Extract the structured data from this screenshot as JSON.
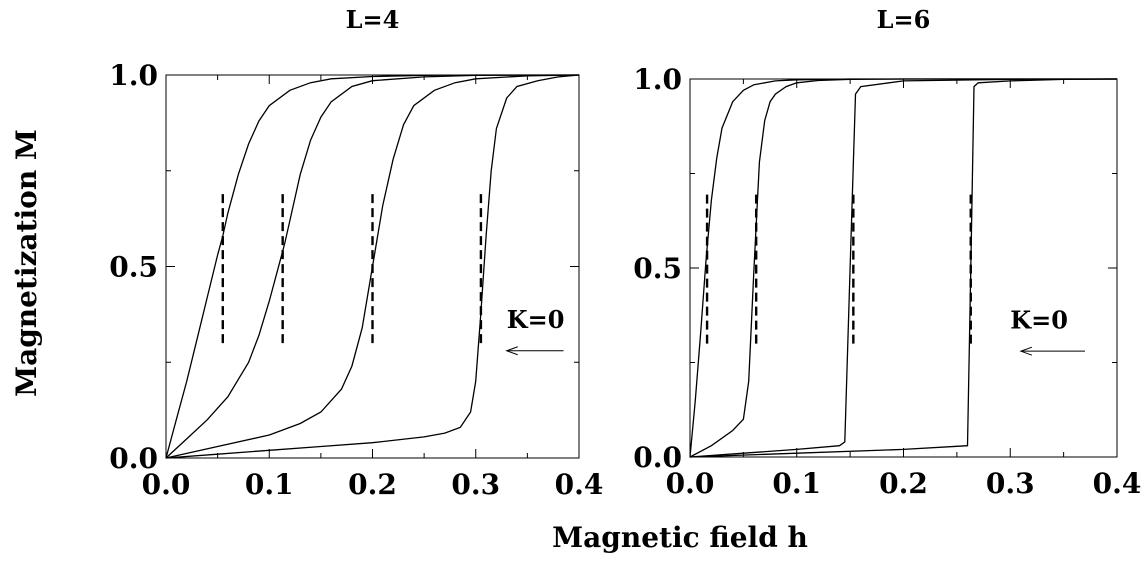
{
  "chart_data": [
    {
      "type": "line",
      "title": "L=4",
      "xlim": [
        0,
        0.4
      ],
      "ylim": [
        0,
        1
      ],
      "xticks": [
        "0.0",
        "0.1",
        "0.2",
        "0.3",
        "0.4"
      ],
      "yticks": [
        "0.0",
        "0.5",
        "1.0"
      ],
      "xlabel": "Magnetic field h",
      "ylabel": "Magnetization M",
      "grid": false,
      "series": [
        {
          "x": [
            0,
            0.01,
            0.02,
            0.03,
            0.04,
            0.05,
            0.055,
            0.06,
            0.07,
            0.08,
            0.09,
            0.1,
            0.12,
            0.14,
            0.16,
            0.2,
            0.25,
            0.3,
            0.4
          ],
          "y": [
            0,
            0.1,
            0.2,
            0.31,
            0.42,
            0.53,
            0.58,
            0.64,
            0.74,
            0.82,
            0.88,
            0.92,
            0.96,
            0.98,
            0.99,
            0.996,
            0.999,
            1.0,
            1.0
          ]
        },
        {
          "x": [
            0,
            0.02,
            0.04,
            0.06,
            0.08,
            0.09,
            0.1,
            0.11,
            0.115,
            0.12,
            0.13,
            0.14,
            0.15,
            0.16,
            0.18,
            0.2,
            0.25,
            0.3,
            0.4
          ],
          "y": [
            0,
            0.05,
            0.1,
            0.16,
            0.25,
            0.32,
            0.41,
            0.51,
            0.56,
            0.62,
            0.74,
            0.83,
            0.89,
            0.93,
            0.97,
            0.985,
            0.995,
            0.999,
            1.0
          ]
        },
        {
          "x": [
            0,
            0.05,
            0.1,
            0.13,
            0.15,
            0.17,
            0.18,
            0.19,
            0.2,
            0.21,
            0.22,
            0.23,
            0.24,
            0.26,
            0.28,
            0.3,
            0.35,
            0.4
          ],
          "y": [
            0,
            0.03,
            0.06,
            0.09,
            0.12,
            0.18,
            0.24,
            0.34,
            0.5,
            0.66,
            0.78,
            0.87,
            0.92,
            0.96,
            0.98,
            0.99,
            0.998,
            1.0
          ]
        },
        {
          "x": [
            0,
            0.05,
            0.1,
            0.15,
            0.2,
            0.25,
            0.27,
            0.285,
            0.295,
            0.3,
            0.305,
            0.31,
            0.315,
            0.32,
            0.33,
            0.34,
            0.36,
            0.38,
            0.4
          ],
          "y": [
            0,
            0.01,
            0.02,
            0.03,
            0.04,
            0.055,
            0.065,
            0.08,
            0.12,
            0.2,
            0.38,
            0.58,
            0.75,
            0.86,
            0.94,
            0.97,
            0.985,
            0.995,
            1.0
          ]
        }
      ],
      "critical_fields": [
        0.055,
        0.113,
        0.2,
        0.305
      ],
      "critical_line_yrange": [
        0.3,
        0.7
      ],
      "annotation": {
        "text": "K=0",
        "arrow_from": [
          0.385,
          0.28
        ],
        "arrow_to": [
          0.33,
          0.28
        ],
        "text_at": [
          0.33,
          0.34
        ]
      }
    },
    {
      "type": "line",
      "title": "L=6",
      "xlim": [
        0,
        0.4
      ],
      "ylim": [
        0,
        1
      ],
      "xticks": [
        "0.0",
        "0.1",
        "0.2",
        "0.3",
        "0.4"
      ],
      "yticks": [
        "0.0",
        "0.5",
        "1.0"
      ],
      "grid": false,
      "series": [
        {
          "x": [
            0,
            0.005,
            0.01,
            0.015,
            0.02,
            0.025,
            0.03,
            0.04,
            0.05,
            0.06,
            0.08,
            0.1,
            0.15,
            0.2,
            0.4
          ],
          "y": [
            0,
            0.15,
            0.33,
            0.52,
            0.68,
            0.79,
            0.87,
            0.94,
            0.97,
            0.985,
            0.995,
            0.998,
            1.0,
            1.0,
            1.0
          ]
        },
        {
          "x": [
            0,
            0.02,
            0.04,
            0.05,
            0.055,
            0.06,
            0.065,
            0.07,
            0.075,
            0.08,
            0.09,
            0.1,
            0.12,
            0.15,
            0.2,
            0.4
          ],
          "y": [
            0,
            0.03,
            0.07,
            0.1,
            0.2,
            0.5,
            0.78,
            0.89,
            0.94,
            0.96,
            0.98,
            0.99,
            0.996,
            0.999,
            1.0,
            1.0
          ]
        },
        {
          "x": [
            0,
            0.05,
            0.1,
            0.14,
            0.145,
            0.15,
            0.155,
            0.16,
            0.2,
            0.3,
            0.4
          ],
          "y": [
            0,
            0.01,
            0.02,
            0.03,
            0.04,
            0.5,
            0.96,
            0.98,
            0.995,
            0.999,
            1.0
          ]
        },
        {
          "x": [
            0,
            0.1,
            0.2,
            0.26,
            0.263,
            0.266,
            0.27,
            0.3,
            0.35,
            0.4
          ],
          "y": [
            0,
            0.01,
            0.02,
            0.03,
            0.5,
            0.98,
            0.99,
            0.995,
            0.999,
            1.0
          ]
        }
      ],
      "critical_fields": [
        0.016,
        0.062,
        0.153,
        0.263
      ],
      "critical_line_yrange": [
        0.3,
        0.7
      ],
      "annotation": {
        "text": "K=0",
        "arrow_from": [
          0.37,
          0.28
        ],
        "arrow_to": [
          0.31,
          0.28
        ],
        "text_at": [
          0.3,
          0.34
        ]
      }
    }
  ]
}
